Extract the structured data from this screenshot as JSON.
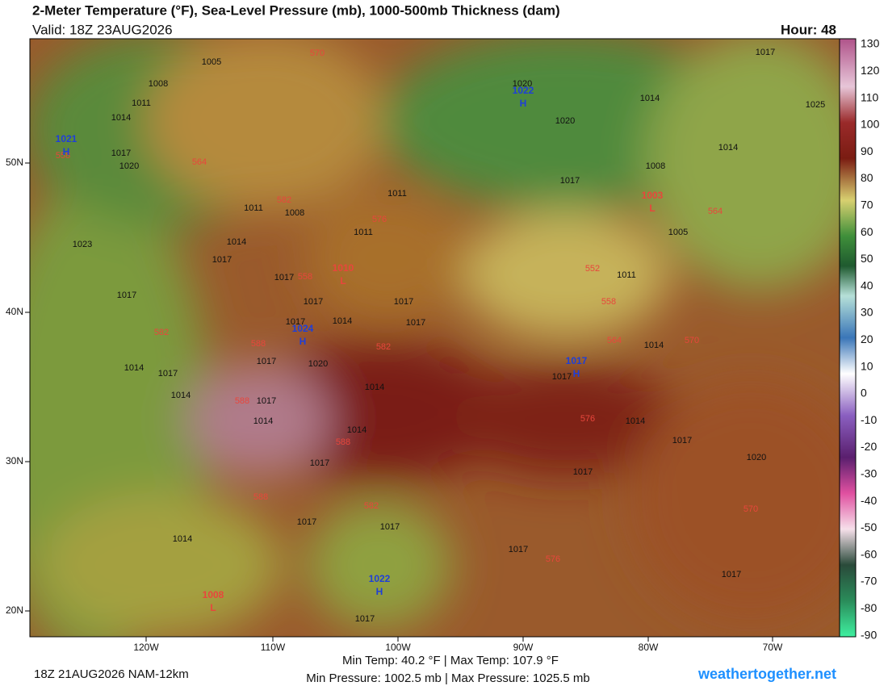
{
  "header": {
    "title": "2-Meter Temperature (°F), Sea-Level Pressure (mb), 1000-500mb Thickness (dam)",
    "valid": "Valid: 18Z 23AUG2026",
    "hour": "Hour: 48"
  },
  "colorbar": {
    "labels": [
      "130",
      "120",
      "110",
      "100",
      "90",
      "80",
      "70",
      "60",
      "50",
      "40",
      "30",
      "20",
      "10",
      "0",
      "-10",
      "-20",
      "-30",
      "-40",
      "-50",
      "-60",
      "-70",
      "-80",
      "-90"
    ]
  },
  "axes": {
    "lat_labels": [
      "50N",
      "40N",
      "30N",
      "20N"
    ],
    "lon_labels": [
      "120W",
      "110W",
      "100W",
      "90W",
      "80W",
      "70W"
    ]
  },
  "pressure_centers": [
    {
      "letter": "H",
      "value": "1022"
    },
    {
      "letter": "H",
      "value": "1021"
    },
    {
      "letter": "H",
      "value": "1024"
    },
    {
      "letter": "H",
      "value": "1017"
    },
    {
      "letter": "H",
      "value": "1022"
    },
    {
      "letter": "L",
      "value": "1010"
    },
    {
      "letter": "L",
      "value": "1003"
    },
    {
      "letter": "L",
      "value": "1008"
    }
  ],
  "isobar_labels": [
    "1005",
    "1008",
    "1011",
    "1014",
    "1017",
    "1020",
    "1020",
    "1020",
    "1017",
    "1014",
    "1017",
    "1025",
    "1014",
    "1008",
    "1005",
    "1011",
    "1008",
    "1011",
    "1014",
    "1017",
    "1023",
    "1017",
    "1017",
    "1017",
    "1014",
    "1017",
    "1017",
    "1017",
    "1020",
    "1017",
    "1014",
    "1017",
    "1014",
    "1017",
    "1014",
    "1014",
    "1014",
    "1017",
    "1017",
    "1017",
    "1017",
    "1017",
    "1017",
    "1020",
    "1017",
    "1014",
    "1014",
    "1014",
    "1017",
    "1017",
    "1011",
    "1011"
  ],
  "thickness_labels": [
    "570",
    "558",
    "564",
    "582",
    "576",
    "558",
    "552",
    "558",
    "564",
    "570",
    "582",
    "588",
    "582",
    "588",
    "588",
    "576",
    "588",
    "582",
    "576",
    "570",
    "564"
  ],
  "footer": {
    "run": "18Z 21AUG2026 NAM-12km",
    "temps": "Min Temp:  40.2 °F | Max Temp: 107.9 °F",
    "pressure": "Min Pressure: 1002.5 mb | Max Pressure: 1025.5 mb",
    "site": "weathertogether.net"
  }
}
